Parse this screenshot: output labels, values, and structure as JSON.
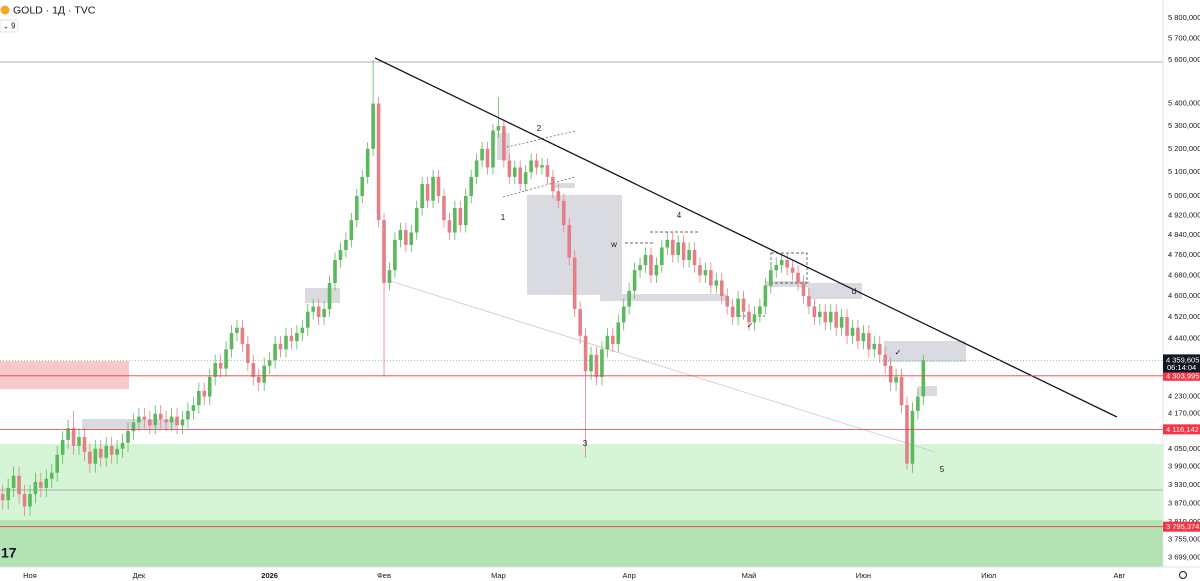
{
  "header": {
    "symbol": "GOLD · 1Д · TVC",
    "indicators": "9"
  },
  "chart_data": {
    "type": "candlestick",
    "log_scale": true,
    "up_color": "#5cb85c",
    "down_color": "#e57f87",
    "open": [
      3900,
      3880,
      3920,
      3960,
      3900,
      3860,
      3900,
      3940,
      3920,
      3950,
      3970,
      4030,
      4080,
      4120,
      4060,
      4090,
      4040,
      4000,
      4050,
      4020,
      4060,
      4030,
      4050,
      4070,
      4110,
      4140,
      4160,
      4150,
      4130,
      4170,
      4150,
      4140,
      4160,
      4130,
      4150,
      4180,
      4200,
      4250,
      4230,
      4300,
      4350,
      4330,
      4400,
      4460,
      4480,
      4420,
      4350,
      4300,
      4280,
      4340,
      4360,
      4420,
      4400,
      4450,
      4430,
      4460,
      4480,
      4540,
      4560,
      4520,
      4550,
      4650,
      4740,
      4780,
      4820,
      4900,
      5000,
      5080,
      5200,
      5400,
      4900,
      4650,
      4700,
      4820,
      4860,
      4800,
      4850,
      4950,
      5050,
      4980,
      5080,
      5000,
      4900,
      4850,
      4950,
      4880,
      5000,
      5080,
      5150,
      5200,
      5120,
      5280,
      5300,
      5150,
      5080,
      5120,
      5050,
      5100,
      5150,
      5120,
      5130,
      5080,
      5020,
      4980,
      4880,
      4750,
      4550,
      4450,
      4320,
      4380,
      4300,
      4400,
      4450,
      4420,
      4500,
      4560,
      4620,
      4700,
      4720,
      4760,
      4680,
      4720,
      4790,
      4820,
      4760,
      4810,
      4740,
      4780,
      4720,
      4680,
      4700,
      4640,
      4660,
      4600,
      4560,
      4520,
      4590,
      4540,
      4500,
      4530,
      4560,
      4640,
      4700,
      4720,
      4740,
      4710,
      4690,
      4650,
      4600,
      4560,
      4520,
      4540,
      4500,
      4540,
      4480,
      4520,
      4450,
      4480,
      4430,
      4460,
      4400,
      4420,
      4380,
      4340,
      4280,
      4300,
      4200,
      4000,
      4180,
      4230
    ],
    "high": [
      3930,
      3950,
      3990,
      3990,
      3930,
      3930,
      3970,
      3970,
      3980,
      4000,
      4060,
      4110,
      4150,
      4180,
      4120,
      4120,
      4070,
      4080,
      4080,
      4090,
      4090,
      4080,
      4100,
      4140,
      4170,
      4190,
      4190,
      4180,
      4200,
      4200,
      4180,
      4190,
      4190,
      4180,
      4210,
      4230,
      4280,
      4280,
      4330,
      4380,
      4380,
      4430,
      4490,
      4510,
      4510,
      4450,
      4380,
      4330,
      4370,
      4390,
      4450,
      4450,
      4480,
      4480,
      4490,
      4510,
      4570,
      4590,
      4590,
      4580,
      4680,
      4770,
      4810,
      4850,
      4930,
      5030,
      5110,
      5230,
      5600,
      5430,
      4930,
      4730,
      4850,
      4890,
      4890,
      4880,
      4980,
      5080,
      5080,
      5110,
      5110,
      5030,
      4930,
      4980,
      4980,
      5030,
      5110,
      5180,
      5230,
      5230,
      5310,
      5430,
      5330,
      5180,
      5150,
      5150,
      5130,
      5180,
      5180,
      5160,
      5160,
      5110,
      5050,
      5010,
      4910,
      4780,
      4580,
      4480,
      4410,
      4410,
      4430,
      4480,
      4480,
      4530,
      4590,
      4650,
      4730,
      4750,
      4790,
      4790,
      4750,
      4820,
      4850,
      4850,
      4840,
      4840,
      4810,
      4810,
      4750,
      4730,
      4730,
      4690,
      4690,
      4630,
      4590,
      4620,
      4620,
      4570,
      4560,
      4590,
      4670,
      4730,
      4750,
      4770,
      4770,
      4740,
      4720,
      4680,
      4630,
      4590,
      4570,
      4570,
      4570,
      4570,
      4550,
      4550,
      4510,
      4510,
      4490,
      4490,
      4450,
      4450,
      4410,
      4370,
      4330,
      4330,
      4230,
      4210,
      4260,
      4380
    ],
    "low": [
      3850,
      3850,
      3890,
      3870,
      3830,
      3830,
      3870,
      3890,
      3890,
      3920,
      3940,
      4000,
      4050,
      4030,
      4030,
      4010,
      3970,
      3970,
      3990,
      3990,
      4000,
      4000,
      4020,
      4040,
      4080,
      4110,
      4120,
      4100,
      4100,
      4120,
      4110,
      4110,
      4100,
      4100,
      4120,
      4150,
      4170,
      4200,
      4200,
      4270,
      4300,
      4300,
      4370,
      4430,
      4390,
      4320,
      4270,
      4250,
      4250,
      4310,
      4330,
      4370,
      4370,
      4400,
      4400,
      4430,
      4450,
      4510,
      4490,
      4490,
      4520,
      4620,
      4710,
      4750,
      4790,
      4870,
      4970,
      5050,
      5170,
      4870,
      4300,
      4620,
      4670,
      4790,
      4770,
      4770,
      4820,
      4920,
      4950,
      4950,
      4970,
      4870,
      4820,
      4820,
      4850,
      4850,
      4970,
      5050,
      5120,
      5090,
      5090,
      5250,
      5120,
      5050,
      5050,
      5020,
      5020,
      5070,
      5090,
      5090,
      5050,
      4990,
      4950,
      4850,
      4720,
      4520,
      4420,
      4020,
      4290,
      4270,
      4270,
      4370,
      4390,
      4390,
      4470,
      4530,
      4590,
      4670,
      4690,
      4650,
      4650,
      4690,
      4760,
      4730,
      4730,
      4710,
      4710,
      4690,
      4650,
      4650,
      4610,
      4610,
      4570,
      4530,
      4490,
      4490,
      4510,
      4470,
      4470,
      4500,
      4530,
      4610,
      4670,
      4690,
      4680,
      4660,
      4620,
      4570,
      4530,
      4490,
      4490,
      4470,
      4470,
      4450,
      4450,
      4420,
      4420,
      4400,
      4400,
      4370,
      4370,
      4350,
      4310,
      4250,
      4250,
      4170,
      3980,
      3970,
      4150,
      4200
    ],
    "close": [
      3880,
      3920,
      3960,
      3900,
      3860,
      3900,
      3940,
      3920,
      3950,
      3970,
      4030,
      4080,
      4120,
      4060,
      4090,
      4040,
      4000,
      4050,
      4020,
      4060,
      4030,
      4050,
      4070,
      4110,
      4140,
      4160,
      4150,
      4130,
      4170,
      4150,
      4140,
      4160,
      4130,
      4150,
      4180,
      4200,
      4250,
      4230,
      4300,
      4350,
      4330,
      4400,
      4460,
      4480,
      4420,
      4350,
      4300,
      4280,
      4340,
      4360,
      4420,
      4400,
      4450,
      4430,
      4460,
      4480,
      4540,
      4560,
      4520,
      4550,
      4650,
      4740,
      4780,
      4820,
      4900,
      5000,
      5080,
      5200,
      5400,
      4900,
      4650,
      4700,
      4820,
      4860,
      4800,
      4850,
      4950,
      5050,
      4980,
      5080,
      5000,
      4900,
      4850,
      4950,
      4880,
      5000,
      5080,
      5150,
      5200,
      5120,
      5280,
      5300,
      5150,
      5080,
      5120,
      5050,
      5100,
      5150,
      5120,
      5130,
      5080,
      5020,
      4980,
      4880,
      4750,
      4550,
      4450,
      4320,
      4380,
      4300,
      4400,
      4450,
      4420,
      4500,
      4560,
      4620,
      4700,
      4720,
      4760,
      4680,
      4720,
      4790,
      4820,
      4760,
      4810,
      4740,
      4780,
      4720,
      4680,
      4700,
      4640,
      4660,
      4600,
      4560,
      4520,
      4590,
      4540,
      4500,
      4530,
      4560,
      4640,
      4700,
      4720,
      4740,
      4710,
      4690,
      4650,
      4600,
      4560,
      4520,
      4540,
      4500,
      4540,
      4480,
      4520,
      4450,
      4480,
      4430,
      4460,
      4400,
      4420,
      4380,
      4340,
      4280,
      4300,
      4200,
      4000,
      4180,
      4230,
      4359.605
    ],
    "ylim": [
      3670,
      5887
    ],
    "yticks": [
      {
        "value": 5800,
        "label": "5 800,000"
      },
      {
        "value": 5700,
        "label": "5 700,000"
      },
      {
        "value": 5600,
        "label": "5 600,000"
      },
      {
        "value": 5400,
        "label": "5 400,000"
      },
      {
        "value": 5300,
        "label": "5 300,000"
      },
      {
        "value": 5200,
        "label": "5 200,000"
      },
      {
        "value": 5100,
        "label": "5 100,000"
      },
      {
        "value": 5000,
        "label": "5 000,000"
      },
      {
        "value": 4920,
        "label": "4 920,000"
      },
      {
        "value": 4840,
        "label": "4 840,000"
      },
      {
        "value": 4760,
        "label": "4 760,000"
      },
      {
        "value": 4680,
        "label": "4 680,000"
      },
      {
        "value": 4600,
        "label": "4 600,000"
      },
      {
        "value": 4520,
        "label": "4 520,000"
      },
      {
        "value": 4440,
        "label": "4 440,000"
      },
      {
        "value": 4230,
        "label": "4 230,000"
      },
      {
        "value": 4170,
        "label": "4 170,000"
      },
      {
        "value": 4050,
        "label": "4 050,000"
      },
      {
        "value": 3990,
        "label": "3 990,000"
      },
      {
        "value": 3930,
        "label": "3 930,000"
      },
      {
        "value": 3870,
        "label": "3 870,000"
      },
      {
        "value": 3810,
        "label": "3 810,000"
      },
      {
        "value": 3755,
        "label": "3 755,000"
      },
      {
        "value": 3699,
        "label": "3 699,000"
      }
    ],
    "xlim": [
      -0.5,
      213
    ],
    "xticks": [
      {
        "value": 5,
        "label": "Ноя"
      },
      {
        "value": 25,
        "label": "Дек"
      },
      {
        "value": 49,
        "label": "2026"
      },
      {
        "value": 70,
        "label": "Фев"
      },
      {
        "value": 91,
        "label": "Мар"
      },
      {
        "value": 115,
        "label": "Апр"
      },
      {
        "value": 137,
        "label": "Май"
      },
      {
        "value": 158,
        "label": "Июн"
      },
      {
        "value": 181,
        "label": "Июл"
      },
      {
        "value": 205,
        "label": "Авг"
      }
    ],
    "levels": [
      {
        "value": 4303.995,
        "label": "4 303,995"
      },
      {
        "value": 4116.142,
        "label": "4 116,142"
      },
      {
        "value": 3795.374,
        "label": "3 795,374"
      }
    ],
    "level_color": "#f23645",
    "current_price": {
      "value": 4359.605,
      "label": "4 359,605",
      "countdown": "06:14:04"
    },
    "annotations": [
      "1",
      "2",
      "3",
      "4",
      "5",
      "w",
      "d",
      "✓",
      "✓"
    ]
  }
}
